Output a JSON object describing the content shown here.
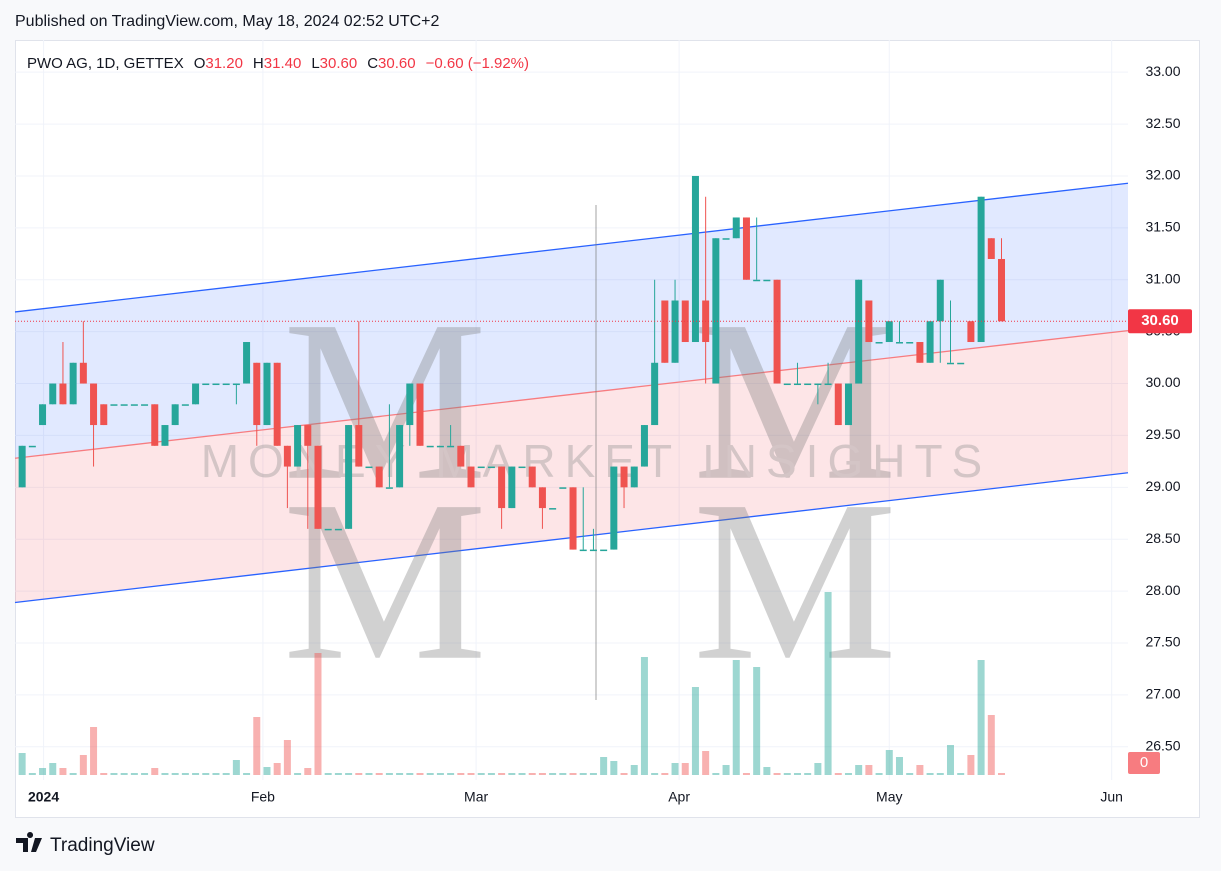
{
  "published": "Published on TradingView.com, May 18, 2024 02:52 UTC+2",
  "brand": "TradingView",
  "chart_data": {
    "type": "candlestick",
    "legend": {
      "symbol": "PWO AG, 1D, GETTEX",
      "o_label": "O",
      "open": "31.20",
      "h_label": "H",
      "high": "31.40",
      "l_label": "L",
      "low": "30.60",
      "c_label": "C",
      "close": "30.60",
      "change": "−0.60 (−1.92%)"
    },
    "watermark": {
      "logo": "M",
      "text": "MONEY MARKET INSIGHTS"
    },
    "up_color": "#26a69a",
    "down_color": "#ef5350",
    "categories": [
      null,
      null,
      null,
      null,
      null,
      null,
      null,
      null,
      null,
      null,
      null,
      null,
      null,
      null,
      null,
      null,
      null,
      null,
      null,
      null,
      null,
      null,
      null,
      null,
      null,
      null,
      null,
      null,
      null,
      null,
      null,
      null,
      null,
      null,
      null,
      null,
      null,
      null,
      null,
      null,
      null,
      null,
      null,
      null,
      null,
      null,
      null,
      null,
      null,
      null,
      null,
      null,
      null,
      null,
      null,
      null,
      null,
      null,
      null,
      null,
      null,
      null,
      null,
      null,
      null,
      null,
      null,
      null,
      null,
      null,
      null,
      null,
      null,
      null,
      null,
      null,
      null,
      null,
      null,
      null,
      null,
      null,
      null,
      null,
      null,
      null,
      null,
      null,
      null,
      null,
      null,
      null,
      null,
      null,
      null,
      null,
      null
    ],
    "open": [
      29.0,
      29.4,
      29.6,
      29.8,
      30.0,
      29.8,
      30.2,
      30.0,
      29.8,
      29.8,
      29.8,
      29.8,
      29.8,
      29.8,
      29.4,
      29.6,
      29.8,
      29.8,
      30.0,
      30.0,
      30.0,
      30.0,
      30.0,
      30.2,
      29.6,
      30.2,
      29.4,
      29.2,
      29.6,
      29.4,
      28.6,
      28.6,
      28.6,
      29.6,
      29.2,
      29.2,
      29.0,
      29.0,
      29.6,
      30.0,
      29.4,
      29.4,
      29.4,
      29.4,
      29.2,
      29.2,
      29.2,
      29.2,
      28.8,
      29.2,
      29.2,
      29.0,
      28.8,
      29.0,
      29.0,
      28.4,
      28.4,
      28.4,
      28.4,
      29.2,
      29.0,
      29.2,
      29.6,
      30.8,
      30.2,
      30.8,
      30.4,
      30.8,
      30.0,
      31.4,
      31.4,
      31.6,
      31.0,
      31.0,
      31.0,
      30.0,
      30.0,
      30.0,
      30.0,
      30.0,
      30.0,
      29.6,
      30.0,
      30.8,
      30.4,
      30.4,
      30.4,
      30.4,
      30.4,
      30.2,
      30.6,
      30.2,
      30.2,
      30.6,
      30.4,
      31.4,
      31.2
    ],
    "high": [
      29.4,
      29.4,
      29.8,
      30.0,
      30.4,
      30.2,
      30.6,
      30.0,
      29.8,
      29.8,
      29.8,
      29.8,
      29.8,
      29.8,
      29.6,
      29.8,
      29.8,
      30.0,
      30.0,
      30.0,
      30.0,
      30.0,
      30.4,
      30.2,
      30.2,
      30.2,
      29.4,
      29.6,
      29.6,
      29.4,
      28.6,
      28.6,
      29.6,
      30.6,
      29.2,
      29.2,
      29.8,
      29.6,
      30.0,
      30.0,
      29.4,
      29.4,
      29.6,
      29.4,
      29.2,
      29.2,
      29.2,
      29.2,
      29.2,
      29.2,
      29.2,
      29.0,
      28.8,
      29.0,
      29.0,
      29.0,
      28.6,
      28.4,
      29.2,
      29.2,
      29.2,
      29.6,
      31.0,
      30.8,
      31.0,
      30.8,
      32.0,
      31.8,
      31.4,
      31.4,
      31.6,
      31.6,
      31.6,
      31.0,
      31.0,
      30.0,
      30.2,
      30.0,
      30.0,
      30.2,
      30.0,
      30.0,
      31.0,
      30.8,
      30.4,
      30.6,
      30.6,
      30.4,
      30.4,
      30.6,
      31.0,
      30.8,
      30.2,
      30.6,
      31.8,
      31.4,
      31.4
    ],
    "low": [
      29.0,
      29.4,
      29.6,
      29.8,
      29.8,
      29.8,
      30.0,
      29.2,
      29.6,
      29.8,
      29.8,
      29.8,
      29.8,
      29.4,
      29.4,
      29.6,
      29.8,
      29.8,
      30.0,
      30.0,
      30.0,
      29.8,
      30.0,
      29.4,
      29.6,
      29.4,
      28.8,
      29.2,
      28.6,
      28.6,
      28.6,
      28.6,
      28.6,
      29.2,
      29.2,
      29.0,
      29.0,
      29.0,
      29.4,
      29.4,
      29.4,
      29.4,
      29.4,
      29.2,
      29.0,
      29.2,
      29.2,
      28.6,
      28.8,
      29.2,
      29.0,
      28.6,
      28.8,
      29.0,
      28.4,
      28.4,
      28.4,
      28.4,
      28.4,
      28.8,
      29.0,
      29.2,
      29.6,
      30.2,
      30.2,
      30.4,
      30.4,
      30.0,
      30.0,
      31.4,
      31.4,
      31.0,
      31.0,
      31.0,
      30.0,
      30.0,
      30.0,
      30.0,
      29.8,
      30.0,
      29.6,
      29.6,
      30.0,
      30.4,
      30.4,
      30.4,
      30.4,
      30.4,
      30.2,
      30.2,
      30.2,
      30.2,
      30.2,
      30.4,
      30.4,
      31.2,
      30.6
    ],
    "close": [
      29.4,
      29.4,
      29.8,
      30.0,
      29.8,
      30.2,
      30.0,
      29.6,
      29.6,
      29.8,
      29.8,
      29.8,
      29.8,
      29.4,
      29.6,
      29.8,
      29.8,
      30.0,
      30.0,
      30.0,
      30.0,
      30.0,
      30.4,
      29.6,
      30.2,
      29.4,
      29.2,
      29.6,
      29.4,
      28.6,
      28.6,
      28.6,
      29.6,
      29.2,
      29.2,
      29.0,
      29.0,
      29.6,
      30.0,
      29.4,
      29.4,
      29.4,
      29.4,
      29.2,
      29.0,
      29.2,
      29.2,
      28.8,
      29.2,
      29.2,
      29.0,
      28.8,
      28.8,
      29.0,
      28.4,
      28.4,
      28.4,
      28.4,
      29.2,
      29.0,
      29.2,
      29.6,
      30.2,
      30.2,
      30.8,
      30.4,
      32.0,
      30.4,
      31.4,
      31.4,
      31.6,
      31.0,
      31.0,
      31.0,
      30.0,
      30.0,
      30.0,
      30.0,
      30.0,
      30.0,
      29.6,
      30.0,
      31.0,
      30.4,
      30.4,
      30.6,
      30.4,
      30.4,
      30.2,
      30.6,
      31.0,
      30.2,
      30.2,
      30.4,
      31.8,
      31.2,
      30.6
    ],
    "volume": [
      22,
      2,
      7,
      12,
      7,
      2,
      20,
      48,
      2,
      2,
      2,
      2,
      2,
      7,
      2,
      2,
      2,
      2,
      2,
      2,
      2,
      15,
      2,
      58,
      8,
      12,
      35,
      2,
      7,
      122,
      2,
      2,
      2,
      2,
      2,
      2,
      2,
      2,
      2,
      2,
      2,
      2,
      2,
      2,
      2,
      2,
      2,
      2,
      2,
      2,
      2,
      2,
      2,
      2,
      2,
      2,
      2,
      18,
      14,
      2,
      10,
      118,
      2,
      2,
      12,
      12,
      88,
      24,
      2,
      10,
      115,
      2,
      108,
      8,
      2,
      2,
      2,
      2,
      12,
      183,
      2,
      2,
      10,
      10,
      2,
      25,
      18,
      2,
      10,
      2,
      2,
      30,
      2,
      20,
      115,
      60,
      2
    ],
    "vlim": [
      0,
      200
    ],
    "vticks": [
      0
    ],
    "channel": {
      "upper": [
        30.69,
        31.93
      ],
      "middle": [
        29.28,
        30.51
      ],
      "lower": [
        27.89,
        29.14
      ]
    },
    "last_price": {
      "value": 30.6,
      "label": "30.60"
    },
    "xlim": [
      -0.7,
      108.4
    ],
    "xticks": [
      {
        "value": 2.1,
        "label": "2024"
      },
      {
        "value": 23.6,
        "label": "Feb"
      },
      {
        "value": 44.5,
        "label": "Mar"
      },
      {
        "value": 64.4,
        "label": "Apr"
      },
      {
        "value": 85,
        "label": "May"
      },
      {
        "value": 106.8,
        "label": "Jun"
      }
    ],
    "ylim": [
      26.18,
      33.31
    ],
    "yticks": [
      {
        "value": 26.5,
        "label": "26.50"
      },
      {
        "value": 27,
        "label": "27.00"
      },
      {
        "value": 27.5,
        "label": "27.50"
      },
      {
        "value": 28,
        "label": "28.00"
      },
      {
        "value": 28.5,
        "label": "28.50"
      },
      {
        "value": 29,
        "label": "29.00"
      },
      {
        "value": 29.5,
        "label": "29.50"
      },
      {
        "value": 30,
        "label": "30.00"
      },
      {
        "value": 30.5,
        "label": "30.50"
      },
      {
        "value": 31,
        "label": "31.00"
      },
      {
        "value": 31.5,
        "label": "31.50"
      },
      {
        "value": 32,
        "label": "32.00"
      },
      {
        "value": 32.5,
        "label": "32.50"
      },
      {
        "value": 33,
        "label": "33.00"
      }
    ],
    "grid": true
  }
}
